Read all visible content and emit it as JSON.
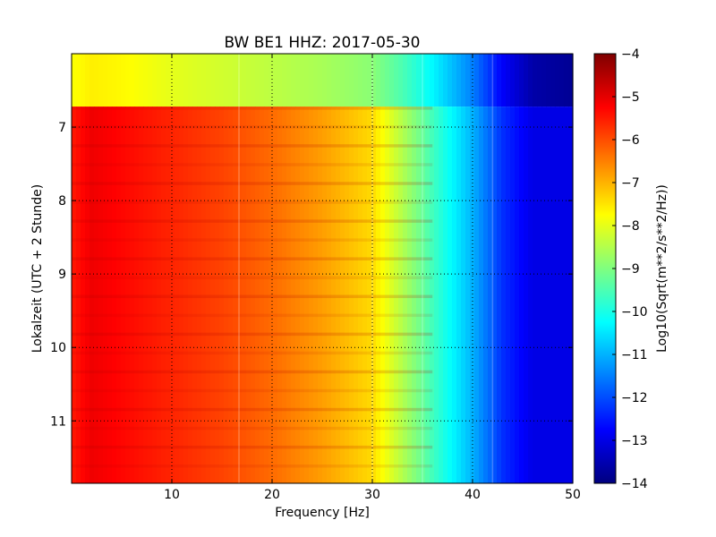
{
  "chart_data": {
    "type": "heatmap",
    "title": "BW BE1 HHZ: 2017-05-30",
    "xlabel": "Frequency [Hz]",
    "ylabel": "Lokalzeit (UTC + 2 Stunde)",
    "xlim": [
      0,
      50
    ],
    "ylim": [
      6.0,
      11.85
    ],
    "y_inverted": true,
    "xticks": [
      10,
      20,
      30,
      40,
      50
    ],
    "yticks": [
      7,
      8,
      9,
      10,
      11
    ],
    "grid": true,
    "colormap": "jet",
    "colorbar": {
      "label": "Log10(Sqrt(m**2/s**2/Hz))",
      "range": [
        -14,
        -4
      ],
      "ticks": [
        -4,
        -5,
        -6,
        -7,
        -8,
        -9,
        -10,
        -11,
        -12,
        -13,
        -14
      ]
    },
    "bands": [
      {
        "time": [
          6.0,
          6.72
        ],
        "profile_hz": [
          0,
          2,
          5,
          10,
          15,
          20,
          25,
          30,
          33,
          36,
          40,
          43,
          46,
          50
        ],
        "profile_log10": [
          -7.8,
          -7.6,
          -7.7,
          -8.0,
          -8.2,
          -8.4,
          -8.6,
          -8.9,
          -9.5,
          -10.3,
          -11.5,
          -12.8,
          -13.6,
          -13.8
        ]
      },
      {
        "time": [
          6.72,
          11.85
        ],
        "profile_hz": [
          0,
          2,
          5,
          10,
          15,
          20,
          25,
          30,
          33,
          36,
          40,
          43,
          46,
          50
        ],
        "profile_log10": [
          -5.5,
          -5.1,
          -5.3,
          -5.6,
          -5.9,
          -6.3,
          -6.8,
          -7.4,
          -8.5,
          -9.6,
          -11.0,
          -12.3,
          -13.0,
          -13.0
        ]
      }
    ],
    "spectral_lines_hz": [
      16.7,
      30.0,
      35.0,
      42.0
    ]
  }
}
